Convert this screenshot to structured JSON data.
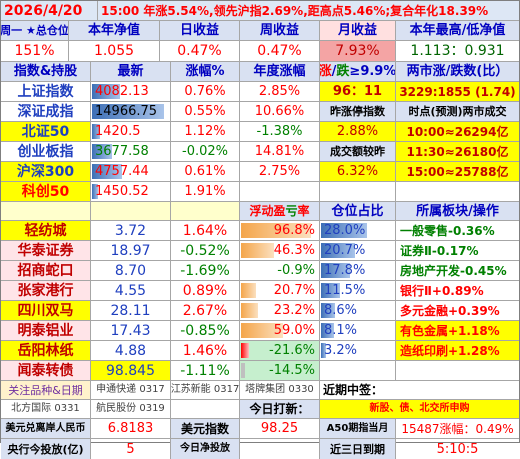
{
  "top": {
    "date": "2026/4/20",
    "summary": "15:00 年涨5.54%,领先沪指2.69%,距高点5.46%;复合年化18.39%"
  },
  "header1": {
    "c1": "周一 ★总仓位",
    "c2": "本年净值",
    "c3": "日收益",
    "c4": "周收益",
    "c5": "月收益",
    "c6": "本年最高/低净值"
  },
  "account": {
    "position": "151%",
    "nav": "1.055",
    "day": "0.47%",
    "week": "0.47%",
    "month": "7.93%",
    "high_low": "1.113：0.931"
  },
  "header2": {
    "c1": "指数&持股",
    "c2": "最新",
    "c3": "涨幅%",
    "c4": "年度涨幅",
    "c5_a": "涨",
    "c5_b": "/",
    "c5_c": "跌",
    "c5_d": "≥9.9%",
    "c6": "两市涨/跌数(比）"
  },
  "indices": [
    {
      "name": "上证指数",
      "price": "4082.13",
      "chg": "0.76%",
      "year": "2.85%",
      "x5": "96：11",
      "x6": "3229:1855 (1.74)"
    },
    {
      "name": "深证成指",
      "price": "14966.75",
      "chg": "0.55%",
      "year": "10.66%",
      "x5": "昨涨停指数",
      "x6": "时点(预测)两市成交"
    },
    {
      "name": "北证50",
      "price": "1420.5",
      "chg": "1.12%",
      "year": "-1.38%",
      "x5": "2.88%",
      "x6": "10:00≈26294亿"
    },
    {
      "name": "创业板指",
      "price": "3677.58",
      "chg": "-0.02%",
      "year": "14.81%",
      "x5": "成交额较昨",
      "x6": "11:30≈26180亿"
    },
    {
      "name": "沪深300",
      "price": "4757.44",
      "chg": "0.61%",
      "year": "2.75%",
      "x5": "6.32%",
      "x6": "15:00≈25788亿"
    },
    {
      "name": "科创50",
      "price": "1450.52",
      "chg": "1.91%",
      "year": "",
      "x5": "",
      "x6": ""
    }
  ],
  "header3": {
    "c4_a": "浮动",
    "c4_b": "盈",
    "c4_c": "亏",
    "c4_d": "率",
    "c5": "仓位占比",
    "c6": "所属板块/操作"
  },
  "stocks": [
    {
      "name": "轻纺城",
      "price": "3.72",
      "chg": "1.64%",
      "pl": "96.8%",
      "pos": "28.0%",
      "sector": "一般零售-0.36%",
      "pl_v": 0.968,
      "pos_v": 0.28
    },
    {
      "name": "华泰证券",
      "price": "18.97",
      "chg": "-0.52%",
      "pl": "46.3%",
      "pos": "20.7%",
      "sector": "证券Ⅱ-0.17%",
      "pl_v": 0.463,
      "pos_v": 0.207
    },
    {
      "name": "招商蛇口",
      "price": "8.70",
      "chg": "-1.69%",
      "pl": "-0.9%",
      "pos": "17.8%",
      "sector": "房地产开发-0.45%",
      "pl_v": -0.009,
      "pos_v": 0.178
    },
    {
      "name": "张家港行",
      "price": "4.55",
      "chg": "0.89%",
      "pl": "20.7%",
      "pos": "11.5%",
      "sector": "银行Ⅱ+0.89%",
      "pl_v": 0.207,
      "pos_v": 0.115
    },
    {
      "name": "四川双马",
      "price": "28.11",
      "chg": "2.67%",
      "pl": "23.2%",
      "pos": "8.6%",
      "sector": "多元金融+0.39%",
      "pl_v": 0.232,
      "pos_v": 0.086
    },
    {
      "name": "明泰铝业",
      "price": "17.43",
      "chg": "-0.85%",
      "pl": "59.0%",
      "pos": "8.1%",
      "sector": "有色金属+1.18%",
      "pl_v": 0.59,
      "pos_v": 0.081
    },
    {
      "name": "岳阳林纸",
      "price": "4.88",
      "chg": "1.46%",
      "pl": "-21.6%",
      "pos": "3.2%",
      "sector": "造纸印刷+1.28%",
      "pl_v": -0.216,
      "pos_v": 0.032
    },
    {
      "name": "闻泰转债",
      "price": "98.845",
      "chg": "-1.11%",
      "pl": "-14.5%",
      "pos": "",
      "sector": "",
      "pl_v": -0.145,
      "pos_v": 0
    }
  ],
  "watch": {
    "label": "关注品种&日期",
    "items1": [
      "申通快递 0317",
      "江苏新能 0317",
      "塔牌集团 0330"
    ],
    "items2": [
      "北方国际 0331",
      "航民股份 0319"
    ],
    "near_label": "近期中签：",
    "today_label": "今日打新：",
    "today_items": "新股、债、北交所申购"
  },
  "bottom": {
    "usd_label": "美元兑离岸人民币",
    "usd_value": "6.8183",
    "dxy_label": "美元指数",
    "dxy_value": "98.25",
    "a50_label": "A50期指当月",
    "a50_value": "15487涨幅：0.49%",
    "cb_label": "央行今投放(亿)",
    "cb_value": "5",
    "net_label": "今日净投放",
    "net_value": "",
    "due_label": "近三日到期",
    "due_value": "5:10:5"
  },
  "colors": {
    "up": "#ff0000",
    "down": "#008000",
    "highlight": "#ffff00",
    "header": "#d9e1f2"
  }
}
